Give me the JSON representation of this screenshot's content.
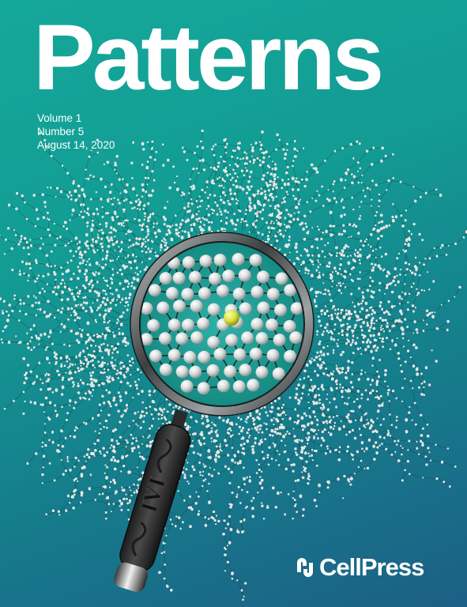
{
  "cover": {
    "journal_title": "Patterns",
    "volume": "Volume 1",
    "number": "Number 5",
    "date": "August 14, 2020",
    "publisher": "CellPress",
    "handle_engraving": "IVI"
  },
  "colors": {
    "background_top": "#14a89a",
    "background_bottom": "#1c5f86",
    "highlight_node": "#d8df3a",
    "node": "#e6e6e6",
    "text": "#ffffff"
  },
  "icons": {
    "magnifier": "magnifying-glass-icon",
    "publisher": "cellpress-logo-icon"
  }
}
